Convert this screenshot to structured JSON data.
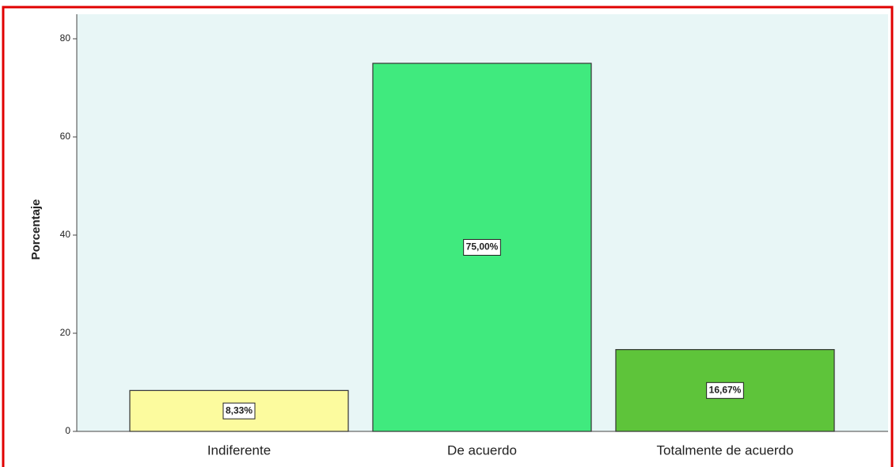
{
  "chart_data": {
    "type": "bar",
    "y_label": "Porcentaje",
    "categories": [
      "Indiferente",
      "De acuerdo",
      "Totalmente de acuerdo"
    ],
    "values": [
      8.33,
      75,
      16.67
    ],
    "value_labels": [
      "8,33%",
      "75,00%",
      "16,67%"
    ],
    "colors": [
      "#fcfb9e",
      "#40ea7e",
      "#5ec43a"
    ],
    "ylim": [
      0,
      85
    ],
    "yticks": [
      0,
      20,
      40,
      60,
      80
    ],
    "background": "#e8f6f6"
  }
}
